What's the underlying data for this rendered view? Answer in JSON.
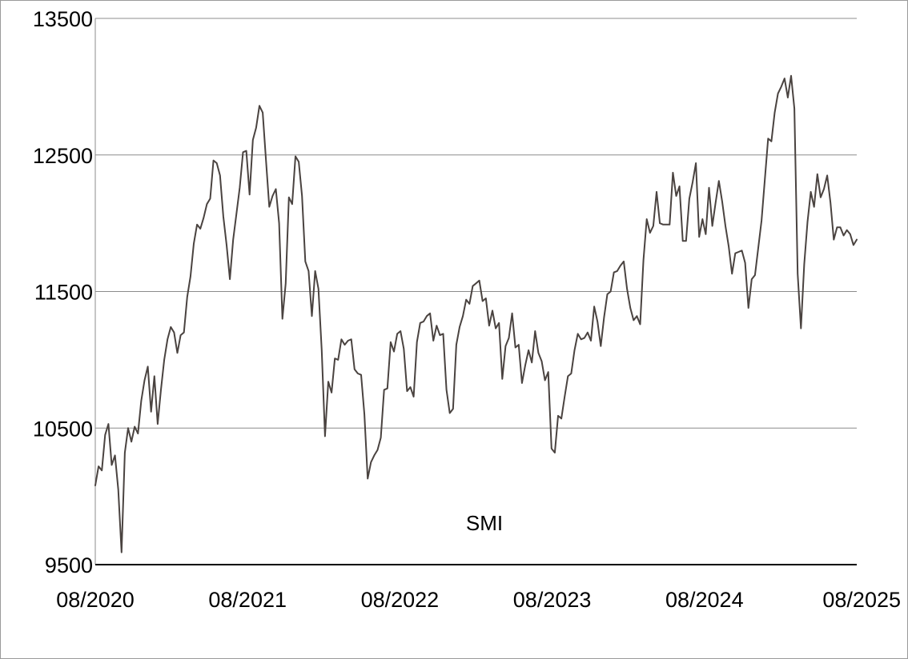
{
  "chart_data": {
    "type": "line",
    "title": "",
    "xlabel": "",
    "ylabel": "",
    "annotation": "SMI",
    "x_start": "08/2020",
    "x_end": "08/2025",
    "x_ticks": [
      "08/2020",
      "08/2021",
      "08/2022",
      "08/2023",
      "08/2024",
      "08/2025"
    ],
    "y_ticks": [
      9500,
      10500,
      11500,
      12500,
      13500
    ],
    "ylim": [
      9500,
      13500
    ],
    "grid": "horizontal",
    "legend": "none",
    "line_color": "#4a4340",
    "grid_color": "#8c8c8c",
    "axis_color": "#000000",
    "series": [
      {
        "values": [
          10080,
          10220,
          10190,
          10450,
          10530,
          10230,
          10300,
          10050,
          9590,
          10320,
          10500,
          10400,
          10510,
          10460,
          10700,
          10850,
          10950,
          10620,
          10880,
          10530,
          10780,
          11000,
          11150,
          11240,
          11200,
          11050,
          11180,
          11200,
          11460,
          11610,
          11850,
          11990,
          11960,
          12040,
          12140,
          12180,
          12460,
          12440,
          12350,
          12050,
          11840,
          11590,
          11880,
          12070,
          12260,
          12520,
          12530,
          12210,
          12610,
          12700,
          12860,
          12810,
          12460,
          12120,
          12200,
          12250,
          12000,
          11300,
          11560,
          12190,
          12140,
          12490,
          12450,
          12200,
          11720,
          11650,
          11320,
          11650,
          11520,
          11070,
          10440,
          10840,
          10760,
          11010,
          11000,
          11150,
          11110,
          11140,
          11150,
          10930,
          10900,
          10890,
          10600,
          10130,
          10250,
          10300,
          10340,
          10430,
          10780,
          10790,
          11130,
          11060,
          11190,
          11210,
          11080,
          10770,
          10800,
          10730,
          11130,
          11270,
          11280,
          11320,
          11340,
          11140,
          11250,
          11180,
          11190,
          10780,
          10610,
          10640,
          11110,
          11240,
          11320,
          11440,
          11410,
          11540,
          11560,
          11580,
          11430,
          11450,
          11250,
          11360,
          11230,
          11270,
          10860,
          11100,
          11160,
          11340,
          11090,
          11110,
          10830,
          10960,
          11070,
          10980,
          11210,
          11050,
          10990,
          10850,
          10910,
          10350,
          10320,
          10590,
          10570,
          10730,
          10880,
          10900,
          11070,
          11190,
          11150,
          11160,
          11200,
          11140,
          11390,
          11280,
          11100,
          11310,
          11480,
          11500,
          11640,
          11650,
          11690,
          11720,
          11520,
          11380,
          11290,
          11320,
          11260,
          11730,
          12030,
          11930,
          11980,
          12230,
          12000,
          11990,
          11990,
          11990,
          12370,
          12200,
          12270,
          11870,
          11870,
          12180,
          12300,
          12440,
          11900,
          12030,
          11920,
          12260,
          11980,
          12150,
          12310,
          12160,
          11980,
          11830,
          11630,
          11780,
          11790,
          11800,
          11710,
          11380,
          11590,
          11620,
          11820,
          12020,
          12320,
          12620,
          12600,
          12810,
          12950,
          13000,
          13060,
          12920,
          13080,
          12840,
          11630,
          11230,
          11700,
          12010,
          12230,
          12120,
          12360,
          12190,
          12250,
          12350,
          12150,
          11880,
          11970,
          11970,
          11910,
          11950,
          11920,
          11840,
          11880
        ]
      }
    ]
  }
}
